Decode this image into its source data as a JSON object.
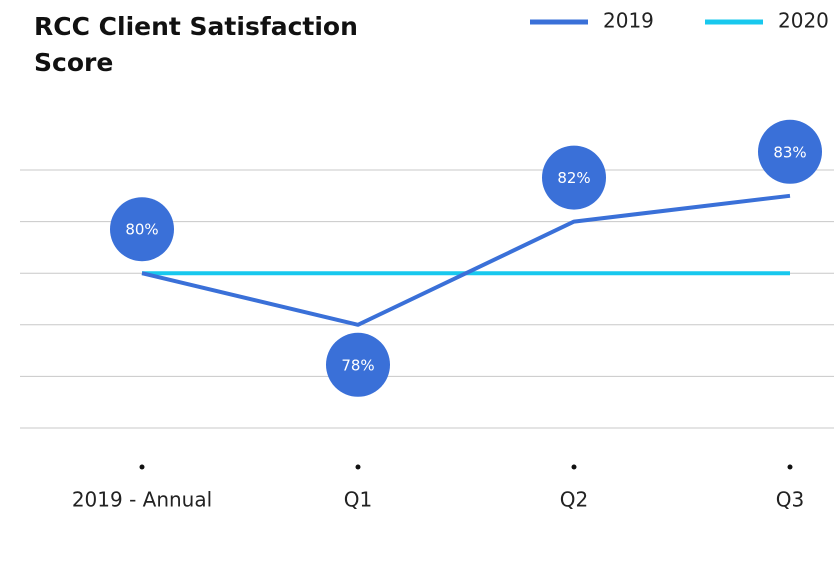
{
  "chart_data": {
    "type": "line",
    "title_lines": [
      "RCC Client Satisfaction",
      "Score"
    ],
    "categories": [
      "2019 - Annual",
      "Q1",
      "Q2",
      "Q3"
    ],
    "series": [
      {
        "name": "2019",
        "color": "#3a70d8",
        "values": [
          80,
          78,
          82,
          83
        ],
        "value_labels": [
          "80%",
          "78%",
          "82%",
          "83%"
        ]
      },
      {
        "name": "2020",
        "color": "#18c8ee",
        "values": [
          80,
          80,
          80,
          80
        ]
      }
    ],
    "ylim": [
      74,
      84
    ],
    "yticks": [
      74,
      76,
      78,
      80,
      82,
      84
    ],
    "grid": true
  }
}
